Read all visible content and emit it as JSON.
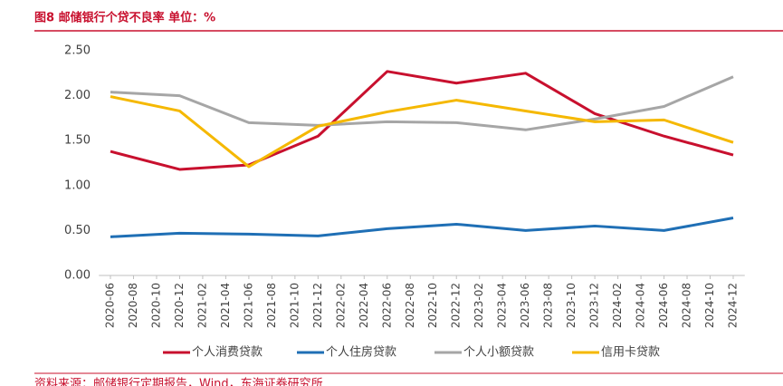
{
  "chart_data": {
    "type": "line",
    "title": "图8 邮储银行个贷不良率 单位：%",
    "source": "资料来源：邮储银行定期报告，Wind，东海证券研究所",
    "x": [
      "2020-06",
      "2020-12",
      "2021-06",
      "2021-12",
      "2022-06",
      "2022-12",
      "2023-06",
      "2023-12",
      "2024-06",
      "2024-12"
    ],
    "xticks": [
      "2020-06",
      "2020-08",
      "2020-10",
      "2020-12",
      "2021-02",
      "2021-04",
      "2021-06",
      "2021-08",
      "2021-10",
      "2021-12",
      "2022-02",
      "2022-04",
      "2022-06",
      "2022-08",
      "2022-10",
      "2022-12",
      "2023-02",
      "2023-04",
      "2023-06",
      "2023-08",
      "2023-10",
      "2023-12",
      "2024-02",
      "2024-04",
      "2024-06",
      "2024-08",
      "2024-10",
      "2024-12"
    ],
    "series": [
      {
        "name": "个人消费贷款",
        "color": "#c8102e",
        "values": [
          1.38,
          1.18,
          1.23,
          1.55,
          2.27,
          2.14,
          2.25,
          1.8,
          1.55,
          1.34
        ]
      },
      {
        "name": "个人住房贷款",
        "color": "#1f6fb5",
        "values": [
          0.43,
          0.47,
          0.46,
          0.44,
          0.52,
          0.57,
          0.5,
          0.55,
          0.5,
          0.64
        ]
      },
      {
        "name": "个人小额贷款",
        "color": "#a6a6a6",
        "values": [
          2.04,
          2.0,
          1.7,
          1.67,
          1.71,
          1.7,
          1.62,
          1.74,
          1.88,
          2.21
        ]
      },
      {
        "name": "信用卡贷款",
        "color": "#f5b800",
        "values": [
          1.99,
          1.83,
          1.21,
          1.66,
          1.82,
          1.95,
          1.83,
          1.71,
          1.73,
          1.48
        ]
      }
    ],
    "ylim": [
      0,
      2.5
    ],
    "yticks": [
      {
        "value": 0,
        "label": "0.00"
      },
      {
        "value": 0.5,
        "label": "0.50"
      },
      {
        "value": 1,
        "label": "1.00"
      },
      {
        "value": 1.5,
        "label": "1.50"
      },
      {
        "value": 2,
        "label": "2.00"
      },
      {
        "value": 2.5,
        "label": "2.50"
      }
    ],
    "grid": false,
    "legend": "bottom"
  }
}
